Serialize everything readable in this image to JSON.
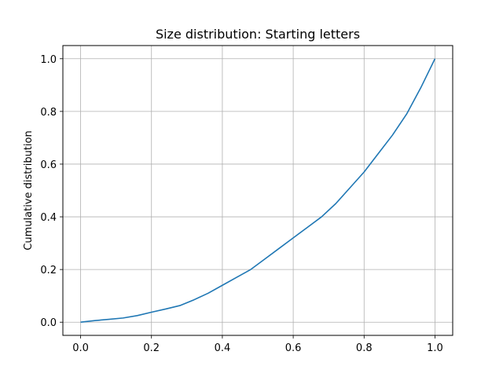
{
  "chart_data": {
    "type": "line",
    "title": "Size distribution: Starting letters",
    "xlabel": "",
    "ylabel": "Cumulative distribution",
    "xlim": [
      -0.05,
      1.05
    ],
    "ylim": [
      -0.05,
      1.05
    ],
    "grid": true,
    "xticks": [
      0.0,
      0.2,
      0.4,
      0.6,
      0.8,
      1.0
    ],
    "xtick_labels": [
      "0.0",
      "0.2",
      "0.4",
      "0.6",
      "0.8",
      "1.0"
    ],
    "yticks": [
      0.0,
      0.2,
      0.4,
      0.6,
      0.8,
      1.0
    ],
    "ytick_labels": [
      "0.0",
      "0.2",
      "0.4",
      "0.6",
      "0.8",
      "1.0"
    ],
    "series": [
      {
        "color": "#1f77b4",
        "x": [
          0.0,
          0.04,
          0.08,
          0.12,
          0.16,
          0.2,
          0.24,
          0.28,
          0.32,
          0.36,
          0.4,
          0.44,
          0.48,
          0.52,
          0.56,
          0.6,
          0.64,
          0.68,
          0.72,
          0.76,
          0.8,
          0.84,
          0.88,
          0.92,
          0.96,
          1.0
        ],
        "y": [
          0.0,
          0.006,
          0.011,
          0.016,
          0.025,
          0.038,
          0.05,
          0.063,
          0.085,
          0.11,
          0.14,
          0.17,
          0.2,
          0.24,
          0.28,
          0.32,
          0.36,
          0.4,
          0.45,
          0.51,
          0.57,
          0.64,
          0.71,
          0.79,
          0.89,
          1.0
        ]
      }
    ]
  }
}
